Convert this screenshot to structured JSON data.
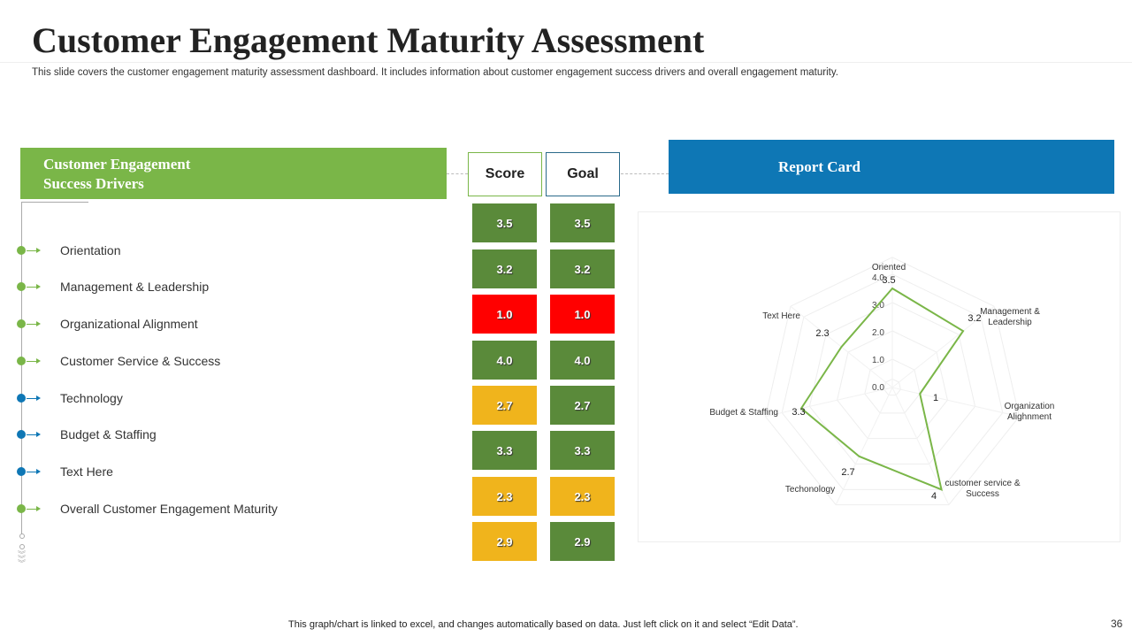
{
  "title": "Customer Engagement Maturity Assessment",
  "subtitle": "This slide covers the customer engagement maturity assessment dashboard. It includes information about customer engagement success drivers and overall engagement maturity.",
  "drivers": {
    "header_line1": "Customer Engagement",
    "header_line2": "Success Drivers",
    "items": [
      {
        "label": "Orientation",
        "color": "#7ab648"
      },
      {
        "label": "Management & Leadership",
        "color": "#7ab648"
      },
      {
        "label": "Organizational Alignment",
        "color": "#7ab648"
      },
      {
        "label": "Customer Service & Success",
        "color": "#7ab648"
      },
      {
        "label": "Technology",
        "color": "#0e77b5"
      },
      {
        "label": "Budget & Staffing",
        "color": "#0e77b5"
      },
      {
        "label": "Text Here",
        "color": "#0e77b5"
      },
      {
        "label": "Overall Customer Engagement Maturity",
        "color": "#7ab648"
      }
    ]
  },
  "table": {
    "score_label": "Score",
    "goal_label": "Goal",
    "rows": [
      {
        "score": "3.5",
        "score_color": "#5a8a3a",
        "goal": "3.5",
        "goal_color": "#5a8a3a"
      },
      {
        "score": "3.2",
        "score_color": "#5a8a3a",
        "goal": "3.2",
        "goal_color": "#5a8a3a"
      },
      {
        "score": "1.0",
        "score_color": "#ff0000",
        "goal": "1.0",
        "goal_color": "#ff0000"
      },
      {
        "score": "4.0",
        "score_color": "#5a8a3a",
        "goal": "4.0",
        "goal_color": "#5a8a3a"
      },
      {
        "score": "2.7",
        "score_color": "#f0b41c",
        "goal": "2.7",
        "goal_color": "#5a8a3a"
      },
      {
        "score": "3.3",
        "score_color": "#5a8a3a",
        "goal": "3.3",
        "goal_color": "#5a8a3a"
      },
      {
        "score": "2.3",
        "score_color": "#f0b41c",
        "goal": "2.3",
        "goal_color": "#f0b41c"
      },
      {
        "score": "2.9",
        "score_color": "#f0b41c",
        "goal": "2.9",
        "goal_color": "#5a8a3a"
      }
    ]
  },
  "report_card": "Report Card",
  "chart_data": {
    "type": "radar",
    "categories": [
      "Oriented",
      "Management & Leadership",
      "Organization Alighnment",
      "customer service & Success",
      "Techonology",
      "Budget & Staffing",
      "Text Here"
    ],
    "values": [
      3.5,
      3.2,
      1,
      4,
      2.7,
      3.3,
      2.3
    ],
    "value_labels": [
      "3.5",
      "3.2",
      "1",
      "4",
      "2.7",
      "3.3",
      "2.3"
    ],
    "ticks": [
      "0.0",
      "1.0",
      "2.0",
      "3.0",
      "4.0"
    ],
    "rlim": [
      0,
      4.5
    ],
    "line_color": "#7ab648",
    "grid": true
  },
  "footer": "This graph/chart is linked to excel,  and changes automatically based on data. Just left click on it and select “Edit Data”.",
  "page_number": "36"
}
